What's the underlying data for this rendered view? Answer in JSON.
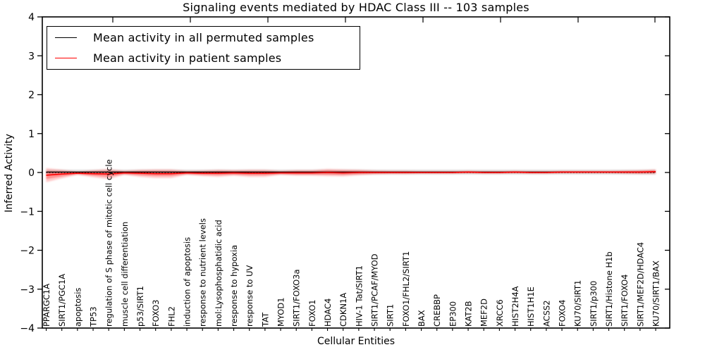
{
  "chart_data": {
    "type": "line",
    "title": "Signaling events mediated by HDAC Class III -- 103 samples",
    "xlabel": "Cellular Entities",
    "ylabel": "Inferred Activity",
    "ylim": [
      -4,
      4
    ],
    "ytick_labels": [
      "4",
      "3",
      "2",
      "1",
      "0",
      "−1",
      "−2",
      "−3",
      "−4"
    ],
    "ytick_values": [
      4,
      3,
      2,
      1,
      0,
      -1,
      -2,
      -3,
      -4
    ],
    "grid": false,
    "legend_position": "upper left",
    "zero_line_style": "dotted",
    "categories": [
      "PPARGC1A",
      "SIRT1/PGC1A",
      "apoptosis",
      "TP53",
      "regulation of S phase of mitotic cell cycle",
      "muscle cell differentiation",
      "p53/SIRT1",
      "FOXO3",
      "FHL2",
      "induction of apoptosis",
      "response to nutrient levels",
      "mol:Lysophosphatidic acid",
      "response to hypoxia",
      "response to UV",
      "TAT",
      "MYOD1",
      "SIRT1/FOXO3a",
      "FOXO1",
      "HDAC4",
      "CDKN1A",
      "HIV-1 Tat/SIRT1",
      "SIRT1/PCAF/MYOD",
      "SIRT1",
      "FOXO1/FHL2/SIRT1",
      "BAX",
      "CREBBP",
      "EP300",
      "KAT2B",
      "MEF2D",
      "XRCC6",
      "HIST2H4A",
      "HIST1H1E",
      "ACSS2",
      "FOXO4",
      "KU70/SIRT1",
      "SIRT1/p300",
      "SIRT1/Histone H1b",
      "SIRT1/FOXO4",
      "SIRT1/MEF2D/HDAC4",
      "KU70/SIRT1/BAX"
    ],
    "series": [
      {
        "name": "Mean activity in all permuted samples",
        "color": "#000000",
        "band_color": "#999999",
        "values": [
          0.01,
          0.01,
          0.01,
          0.01,
          0.01,
          0.01,
          0.01,
          0.01,
          0.01,
          0.01,
          0.01,
          0.01,
          0.01,
          0.01,
          0.01,
          0.01,
          0.01,
          0.01,
          0.01,
          0.01,
          0.01,
          0.01,
          0.01,
          0.01,
          0.01,
          0.01,
          0.01,
          0.01,
          0.01,
          0.01,
          0.01,
          0.01,
          0.01,
          0.01,
          0.01,
          0.01,
          0.01,
          0.01,
          0.01,
          0.01
        ],
        "band_halfwidth": [
          0.055,
          0.055,
          0.055,
          0.055,
          0.055,
          0.055,
          0.055,
          0.055,
          0.055,
          0.055,
          0.055,
          0.055,
          0.055,
          0.055,
          0.055,
          0.055,
          0.055,
          0.055,
          0.055,
          0.055,
          0.055,
          0.055,
          0.055,
          0.055,
          0.055,
          0.055,
          0.055,
          0.055,
          0.055,
          0.055,
          0.055,
          0.055,
          0.055,
          0.055,
          0.055,
          0.055,
          0.055,
          0.055,
          0.055,
          0.055
        ]
      },
      {
        "name": "Mean activity in patient samples",
        "color": "#ff0000",
        "band_color": "#ff0000",
        "values": [
          -0.07,
          -0.04,
          -0.02,
          -0.03,
          -0.04,
          -0.01,
          -0.02,
          -0.03,
          -0.03,
          -0.01,
          -0.02,
          -0.02,
          -0.01,
          -0.02,
          -0.02,
          -0.01,
          -0.01,
          -0.01,
          0,
          -0.01,
          0,
          0,
          0,
          0,
          0,
          0,
          0,
          0.01,
          0,
          0,
          0.01,
          0,
          0,
          0.01,
          0.01,
          0.01,
          0.01,
          0.01,
          0.01,
          0.02
        ],
        "band_halfwidth": [
          0.18,
          0.11,
          0.04,
          0.09,
          0.13,
          0.05,
          0.09,
          0.11,
          0.11,
          0.05,
          0.07,
          0.09,
          0.07,
          0.09,
          0.09,
          0.05,
          0.07,
          0.07,
          0.09,
          0.09,
          0.07,
          0.05,
          0.04,
          0.04,
          0.03,
          0.03,
          0.03,
          0.03,
          0.03,
          0.03,
          0.03,
          0.03,
          0.03,
          0.03,
          0.03,
          0.03,
          0.03,
          0.04,
          0.05,
          0.06
        ]
      }
    ]
  }
}
